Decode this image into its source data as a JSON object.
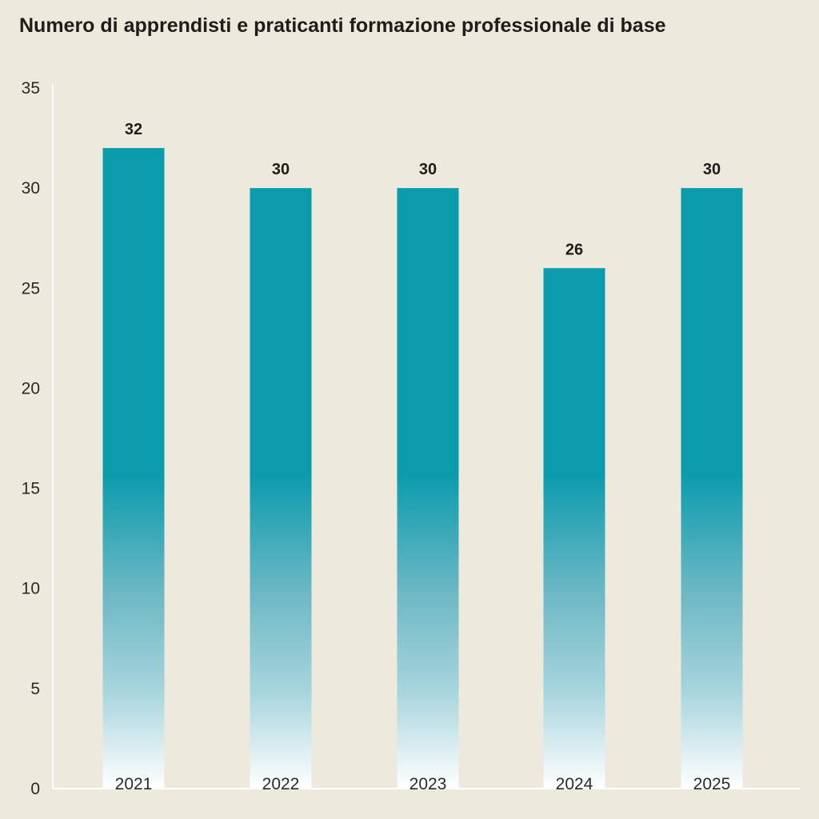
{
  "chart_data": {
    "type": "bar",
    "title": "Numero di apprendisti e praticanti formazione professionale di base",
    "categories": [
      "2021",
      "2022",
      "2023",
      "2024",
      "2025"
    ],
    "values": [
      32,
      30,
      30,
      26,
      30
    ],
    "data_labels": [
      "32",
      "30",
      "30",
      "26",
      "30"
    ],
    "ylim": [
      0,
      35
    ],
    "yticks": [
      "0",
      "5",
      "10",
      "15",
      "20",
      "25",
      "30",
      "35"
    ],
    "xlabel": "",
    "ylabel": "",
    "grid": false,
    "legend": "none",
    "colors": {
      "bar": "#0a9bad",
      "bar_fade": "#ffffff",
      "background": "#ede9dd",
      "axis": "#ffffff",
      "text": "#1f1d17"
    }
  }
}
